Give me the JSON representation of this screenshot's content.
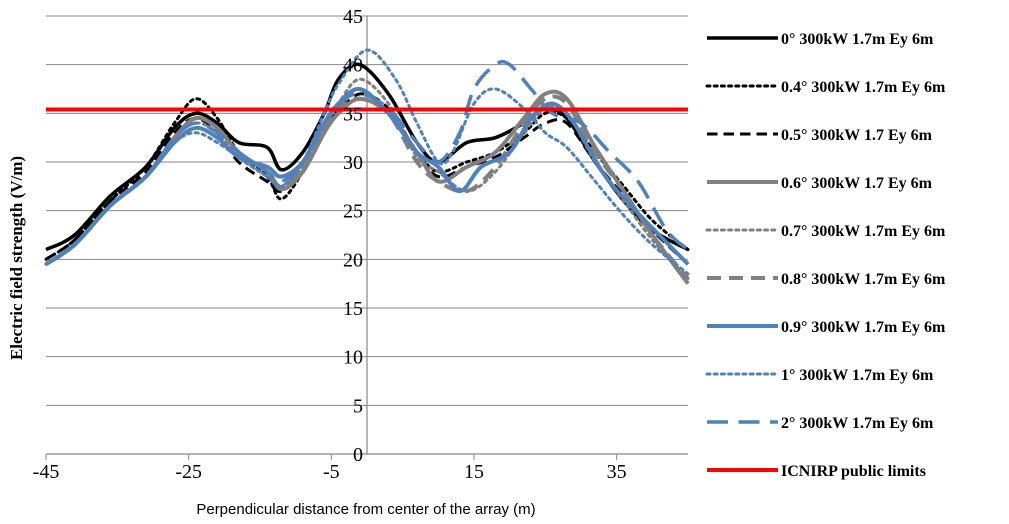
{
  "chart_data": {
    "type": "line",
    "title": "",
    "xlabel": "Perpendicular distance from center of the array (m)",
    "ylabel": "Electric field strength (V/m)",
    "xlim": [
      -45,
      45
    ],
    "ylim": [
      0,
      45
    ],
    "xticks": [
      -45,
      -25,
      -5,
      15,
      35
    ],
    "yticks": [
      0,
      5,
      10,
      15,
      20,
      25,
      30,
      35,
      40,
      45
    ],
    "grid": "horizontal",
    "legend_position": "right",
    "series": [
      {
        "name": "0° 300kW 1.7m Ey 6m",
        "color": "#000000",
        "style": "solid",
        "width": 3.5,
        "points": [
          [
            -45,
            21
          ],
          [
            -41,
            22.5
          ],
          [
            -36,
            26.5
          ],
          [
            -31,
            29.5
          ],
          [
            -27,
            33.5
          ],
          [
            -24,
            35
          ],
          [
            -21,
            34
          ],
          [
            -18,
            32
          ],
          [
            -14,
            31.5
          ],
          [
            -12,
            29.2
          ],
          [
            -9,
            31
          ],
          [
            -6,
            35
          ],
          [
            -4,
            38.5
          ],
          [
            -1,
            40
          ],
          [
            3,
            37
          ],
          [
            7,
            32
          ],
          [
            10,
            30
          ],
          [
            14,
            32
          ],
          [
            18,
            32.5
          ],
          [
            22,
            34
          ],
          [
            25,
            35.5
          ],
          [
            28,
            34.5
          ],
          [
            32,
            30
          ],
          [
            36,
            26
          ],
          [
            40,
            23
          ],
          [
            45,
            21
          ]
        ]
      },
      {
        "name": "0.4° 300kW 1.7m Ey 6m",
        "color": "#000000",
        "style": "dot",
        "width": 3,
        "points": [
          [
            -45,
            20
          ],
          [
            -41,
            22
          ],
          [
            -36,
            26
          ],
          [
            -31,
            29.5
          ],
          [
            -27,
            34
          ],
          [
            -24,
            36.5
          ],
          [
            -21,
            34.5
          ],
          [
            -18,
            31
          ],
          [
            -14,
            28.5
          ],
          [
            -12,
            26.2
          ],
          [
            -9,
            29
          ],
          [
            -6,
            33
          ],
          [
            -4,
            35.5
          ],
          [
            -1,
            37.5
          ],
          [
            3,
            35
          ],
          [
            7,
            31
          ],
          [
            10,
            29
          ],
          [
            14,
            30
          ],
          [
            18,
            31
          ],
          [
            22,
            33
          ],
          [
            25,
            35
          ],
          [
            28,
            34.5
          ],
          [
            32,
            31
          ],
          [
            36,
            27.5
          ],
          [
            40,
            24
          ],
          [
            45,
            21
          ]
        ]
      },
      {
        "name": "0.5° 300kW 1.7 Ey 6m",
        "color": "#000000",
        "style": "dash",
        "width": 3,
        "points": [
          [
            -45,
            20
          ],
          [
            -41,
            22
          ],
          [
            -36,
            26
          ],
          [
            -31,
            29
          ],
          [
            -27,
            33
          ],
          [
            -24,
            34.5
          ],
          [
            -21,
            33
          ],
          [
            -18,
            30
          ],
          [
            -14,
            28
          ],
          [
            -12,
            27
          ],
          [
            -9,
            29
          ],
          [
            -6,
            33
          ],
          [
            -4,
            35
          ],
          [
            -1,
            37
          ],
          [
            3,
            35.5
          ],
          [
            7,
            31
          ],
          [
            10,
            28.5
          ],
          [
            14,
            29.5
          ],
          [
            18,
            30.5
          ],
          [
            22,
            32.5
          ],
          [
            25,
            34
          ],
          [
            28,
            34
          ],
          [
            32,
            30
          ],
          [
            36,
            26.5
          ],
          [
            40,
            23
          ],
          [
            45,
            19.5
          ]
        ]
      },
      {
        "name": "0.6° 300kW 1.7 Ey 6m",
        "color": "#808080",
        "style": "solid",
        "width": 4,
        "points": [
          [
            -45,
            19.5
          ],
          [
            -41,
            21.5
          ],
          [
            -36,
            25.5
          ],
          [
            -31,
            28.5
          ],
          [
            -27,
            32.5
          ],
          [
            -24,
            34.5
          ],
          [
            -21,
            33.5
          ],
          [
            -18,
            31
          ],
          [
            -14,
            29
          ],
          [
            -12,
            27.2
          ],
          [
            -9,
            29
          ],
          [
            -6,
            33
          ],
          [
            -4,
            35
          ],
          [
            -1,
            36.5
          ],
          [
            3,
            35
          ],
          [
            7,
            31
          ],
          [
            10,
            28
          ],
          [
            14,
            29.5
          ],
          [
            18,
            31
          ],
          [
            22,
            34.5
          ],
          [
            25,
            37
          ],
          [
            28,
            36.5
          ],
          [
            32,
            31.5
          ],
          [
            36,
            27
          ],
          [
            40,
            22.5
          ],
          [
            45,
            17.5
          ]
        ]
      },
      {
        "name": "0.7° 300kW 1.7m Ey 6m",
        "color": "#808080",
        "style": "dot",
        "width": 3,
        "points": [
          [
            -45,
            19.5
          ],
          [
            -41,
            21.5
          ],
          [
            -36,
            25.5
          ],
          [
            -31,
            28.5
          ],
          [
            -27,
            32.5
          ],
          [
            -24,
            34
          ],
          [
            -21,
            33
          ],
          [
            -18,
            30.5
          ],
          [
            -14,
            28.5
          ],
          [
            -12,
            27.5
          ],
          [
            -9,
            29.5
          ],
          [
            -6,
            33.5
          ],
          [
            -4,
            36
          ],
          [
            -1,
            38.5
          ],
          [
            3,
            36
          ],
          [
            7,
            30.5
          ],
          [
            10,
            29
          ],
          [
            14,
            27
          ],
          [
            18,
            29
          ],
          [
            22,
            33
          ],
          [
            25,
            35.5
          ],
          [
            28,
            35
          ],
          [
            32,
            30
          ],
          [
            36,
            26
          ],
          [
            40,
            22
          ],
          [
            45,
            18
          ]
        ]
      },
      {
        "name": "0.8° 300kW 1.7m Ey 6m",
        "color": "#808080",
        "style": "dash",
        "width": 4,
        "points": [
          [
            -45,
            19.5
          ],
          [
            -41,
            21.5
          ],
          [
            -36,
            25.5
          ],
          [
            -31,
            28.5
          ],
          [
            -27,
            32.5
          ],
          [
            -24,
            34.5
          ],
          [
            -21,
            33.5
          ],
          [
            -18,
            31
          ],
          [
            -14,
            29
          ],
          [
            -12,
            27.5
          ],
          [
            -9,
            29.5
          ],
          [
            -6,
            33.5
          ],
          [
            -4,
            35.5
          ],
          [
            -1,
            36.5
          ],
          [
            3,
            35
          ],
          [
            7,
            30
          ],
          [
            10,
            28
          ],
          [
            14,
            27
          ],
          [
            18,
            29.5
          ],
          [
            22,
            34
          ],
          [
            25,
            36.5
          ],
          [
            28,
            36
          ],
          [
            32,
            31
          ],
          [
            36,
            27
          ],
          [
            40,
            22.5
          ],
          [
            45,
            18
          ]
        ]
      },
      {
        "name": "0.9° 300kW 1.7m Ey 6m",
        "color": "#4f81bd",
        "style": "solid",
        "width": 4,
        "points": [
          [
            -45,
            19.5
          ],
          [
            -41,
            21.5
          ],
          [
            -36,
            25.5
          ],
          [
            -31,
            28.5
          ],
          [
            -27,
            32
          ],
          [
            -24,
            33.5
          ],
          [
            -21,
            32.5
          ],
          [
            -18,
            30.5
          ],
          [
            -14,
            29.5
          ],
          [
            -12,
            28.5
          ],
          [
            -9,
            30
          ],
          [
            -6,
            34
          ],
          [
            -4,
            36
          ],
          [
            -1,
            37.5
          ],
          [
            3,
            35
          ],
          [
            7,
            31
          ],
          [
            10,
            29.5
          ],
          [
            13,
            27
          ],
          [
            16,
            29.5
          ],
          [
            20,
            31
          ],
          [
            23,
            34.5
          ],
          [
            26,
            36
          ],
          [
            29,
            34
          ],
          [
            33,
            29
          ],
          [
            37,
            25.5
          ],
          [
            45,
            19.5
          ]
        ]
      },
      {
        "name": "1° 300kW 1.7m Ey 6m",
        "color": "#4f81bd",
        "style": "dot",
        "width": 3,
        "points": [
          [
            -45,
            19.5
          ],
          [
            -41,
            21.5
          ],
          [
            -36,
            25.5
          ],
          [
            -31,
            28.5
          ],
          [
            -27,
            32
          ],
          [
            -24,
            33
          ],
          [
            -21,
            32
          ],
          [
            -18,
            30.5
          ],
          [
            -14,
            28.5
          ],
          [
            -12,
            27.5
          ],
          [
            -9,
            30
          ],
          [
            -6,
            35
          ],
          [
            -4,
            38
          ],
          [
            0,
            41.5
          ],
          [
            4,
            38.5
          ],
          [
            7,
            34
          ],
          [
            10,
            30
          ],
          [
            12,
            31
          ],
          [
            15,
            36
          ],
          [
            18,
            37.5
          ],
          [
            22,
            35.5
          ],
          [
            25,
            33
          ],
          [
            28,
            31.5
          ],
          [
            32,
            28
          ],
          [
            36,
            24.5
          ],
          [
            40,
            21.5
          ],
          [
            45,
            18.5
          ]
        ]
      },
      {
        "name": "2° 300kW 1.7m Ey 6m",
        "color": "#4f81bd",
        "style": "longdash",
        "width": 3.5,
        "points": [
          [
            -45,
            19.5
          ],
          [
            -41,
            21.5
          ],
          [
            -36,
            25.5
          ],
          [
            -31,
            28.5
          ],
          [
            -27,
            32.5
          ],
          [
            -24,
            34
          ],
          [
            -21,
            33
          ],
          [
            -18,
            31
          ],
          [
            -14,
            29
          ],
          [
            -12,
            28
          ],
          [
            -9,
            30
          ],
          [
            -6,
            34
          ],
          [
            -4,
            36
          ],
          [
            -1,
            37
          ],
          [
            3,
            35.5
          ],
          [
            7,
            32
          ],
          [
            10,
            30
          ],
          [
            13,
            33
          ],
          [
            15,
            37.5
          ],
          [
            18,
            40
          ],
          [
            20,
            40
          ],
          [
            23,
            37.5
          ],
          [
            26,
            35
          ],
          [
            30,
            34
          ],
          [
            34,
            31
          ],
          [
            38,
            28
          ],
          [
            42,
            23
          ],
          [
            45,
            21
          ]
        ]
      },
      {
        "name": "ICNIRP public limits",
        "color": "#ff0000",
        "style": "solid",
        "width": 4,
        "points": [
          [
            -45,
            35.4
          ],
          [
            45,
            35.4
          ]
        ]
      }
    ]
  }
}
